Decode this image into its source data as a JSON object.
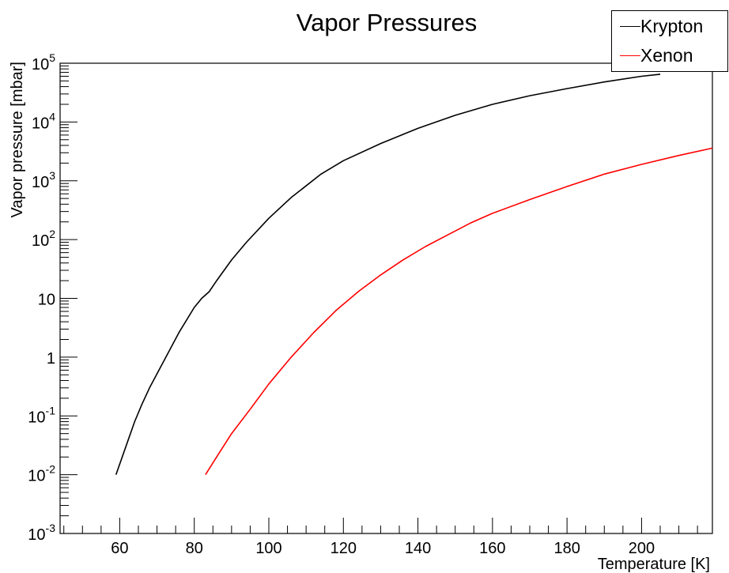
{
  "chart_data": {
    "type": "line",
    "title": "Vapor Pressures",
    "xlabel": "Temperature [K]",
    "ylabel": "Vapor pressure [mbar]",
    "xlim": [
      44,
      219
    ],
    "ylim": [
      0.001,
      100000
    ],
    "y_scale": "log",
    "grid": false,
    "legend_position": "top-right",
    "x_ticks": [
      60,
      80,
      100,
      120,
      140,
      160,
      180,
      200
    ],
    "x_tick_labels": [
      "60",
      "80",
      "100",
      "120",
      "140",
      "160",
      "180",
      "200"
    ],
    "y_ticks": [
      0.001,
      0.01,
      0.1,
      1,
      10,
      100,
      1000,
      10000,
      100000
    ],
    "y_tick_labels": [
      {
        "base": "10",
        "exp": "-3"
      },
      {
        "base": "10",
        "exp": "-2"
      },
      {
        "base": "10",
        "exp": "-1"
      },
      {
        "base": "1",
        "exp": ""
      },
      {
        "base": "10",
        "exp": ""
      },
      {
        "base": "10",
        "exp": "2"
      },
      {
        "base": "10",
        "exp": "3"
      },
      {
        "base": "10",
        "exp": "4"
      },
      {
        "base": "10",
        "exp": "5"
      }
    ],
    "series": [
      {
        "name": "Krypton",
        "color": "#000000",
        "x": [
          59,
          62,
          64,
          66,
          68,
          72,
          76,
          80,
          82,
          84,
          86,
          90,
          94,
          100,
          106,
          114,
          120,
          130,
          140,
          150,
          160,
          170,
          180,
          190,
          200,
          205
        ],
        "y": [
          0.01,
          0.035,
          0.08,
          0.16,
          0.3,
          0.9,
          2.7,
          7,
          10,
          13,
          20,
          45,
          90,
          230,
          520,
          1300,
          2200,
          4300,
          7800,
          13000,
          20000,
          28000,
          37000,
          48000,
          60000,
          65000
        ]
      },
      {
        "name": "Xenon",
        "color": "#ff0000",
        "x": [
          83,
          86,
          90,
          95,
          100,
          106,
          112,
          118,
          124,
          130,
          136,
          142,
          148,
          154,
          160,
          170,
          180,
          190,
          200,
          210,
          219
        ],
        "y": [
          0.01,
          0.02,
          0.05,
          0.13,
          0.35,
          1.0,
          2.6,
          6.2,
          13,
          25,
          45,
          76,
          120,
          190,
          280,
          480,
          800,
          1300,
          1900,
          2700,
          3600
        ]
      }
    ]
  }
}
